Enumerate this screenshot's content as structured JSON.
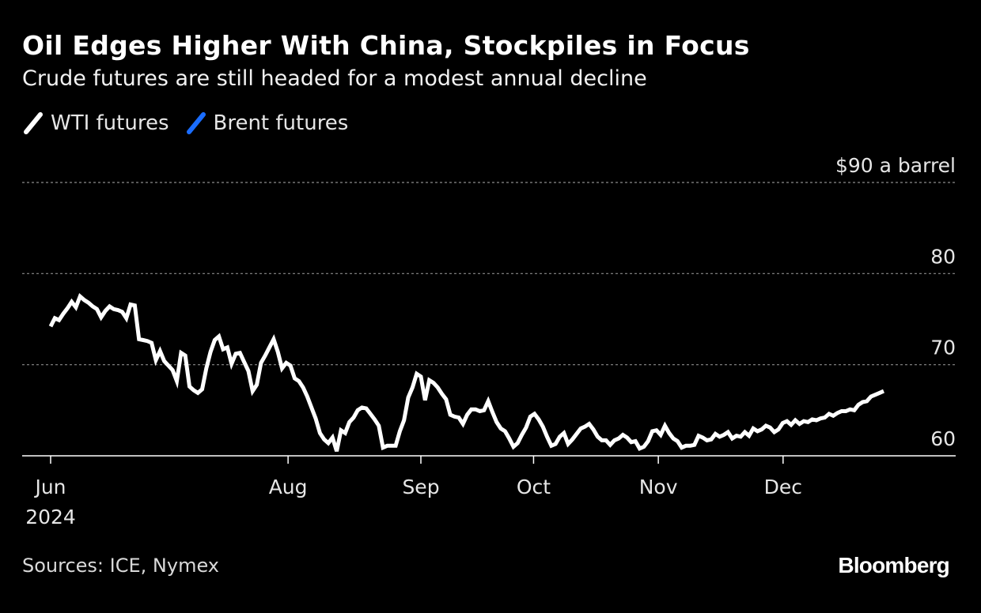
{
  "title": "Oil Edges Higher With China, Stockpiles in Focus",
  "subtitle": "Crude futures are still headed for a modest annual decline",
  "source": "Sources: ICE, Nymex",
  "logo": "Bloomberg",
  "colors": {
    "background": "#000000",
    "wti": "#ffffff",
    "brent": "#1a6dff",
    "grid": "#8c8c8c"
  },
  "chart_data": {
    "type": "line",
    "x_unit": "trading day index (0 = June 3, 2024)",
    "y_unit_label": "$90 a barrel",
    "ylim": [
      60,
      90
    ],
    "y_ticks": [
      {
        "value": 90,
        "label": "$90 a barrel"
      },
      {
        "value": 80,
        "label": "80"
      },
      {
        "value": 70,
        "label": "70"
      },
      {
        "value": 60,
        "label": "60"
      }
    ],
    "x_ticks": [
      {
        "date": "2024-06-03",
        "label": "Jun",
        "sublabel": "2024"
      },
      {
        "date": "2024-08-01",
        "label": "Aug",
        "sublabel": ""
      },
      {
        "date": "2024-09-03",
        "label": "Sep",
        "sublabel": ""
      },
      {
        "date": "2024-10-01",
        "label": "Oct",
        "sublabel": ""
      },
      {
        "date": "2024-11-01",
        "label": "Nov",
        "sublabel": ""
      },
      {
        "date": "2024-12-02",
        "label": "Dec",
        "sublabel": ""
      }
    ],
    "x_start": "2024-06-03",
    "x_end": "2024-12-27",
    "legend_position": "top-left",
    "grid": true,
    "series": [
      {
        "name": "WTI futures",
        "color": "#ffffff",
        "values": [
          74.2,
          75.1,
          74.9,
          75.6,
          76.2,
          76.9,
          76.3,
          77.5,
          77.1,
          76.8,
          76.4,
          76.1,
          75.2,
          75.9,
          76.4,
          76.1,
          76.0,
          75.8,
          75.1,
          76.6,
          76.5,
          72.8,
          72.7,
          72.6,
          72.4,
          70.5,
          71.5,
          70.4,
          69.9,
          69.4,
          68.2,
          71.3,
          71.0,
          67.6,
          67.2,
          66.9,
          67.3,
          69.6,
          71.4,
          72.7,
          73.1,
          71.7,
          71.9,
          70.1,
          71.2,
          71.3,
          70.3,
          69.3,
          67.1,
          67.8,
          70.2,
          71.0,
          71.9,
          72.8,
          71.4,
          69.6,
          70.2,
          69.9,
          68.5,
          68.2,
          67.5,
          66.5,
          65.3,
          64.1,
          62.5,
          61.8,
          61.4,
          62.0,
          60.5,
          62.8,
          62.5,
          63.7,
          64.2,
          65.0,
          65.3,
          65.2,
          64.6,
          64.0,
          63.3,
          60.9,
          61.1,
          61.1,
          61.1,
          62.7,
          63.9,
          66.4,
          67.5,
          69.0,
          68.7,
          66.1,
          68.3,
          68.0,
          67.5,
          66.8,
          66.2,
          64.5,
          64.3,
          64.2,
          63.5,
          64.5,
          65.1,
          65.1,
          64.9,
          65.0,
          66.0,
          64.8,
          63.7,
          63.0,
          62.7,
          61.9,
          61.0,
          61.4,
          62.3,
          63.1,
          64.3,
          64.6,
          64.0,
          63.2,
          62.1,
          61.1,
          61.3,
          62.1,
          62.5,
          61.3,
          61.8,
          62.4,
          63.0,
          63.2,
          63.5,
          62.9,
          62.1,
          61.7,
          61.7,
          61.2,
          61.7,
          61.9,
          62.3,
          62.0,
          61.5,
          61.6,
          60.8,
          61.0,
          61.6,
          62.7,
          62.8,
          62.3,
          63.3,
          62.5,
          61.9,
          61.6,
          60.9,
          61.1,
          61.1,
          61.2,
          62.2,
          62.0,
          61.7,
          61.8,
          62.4,
          62.1,
          62.3,
          62.6,
          61.9,
          62.2,
          62.1,
          62.6,
          62.2,
          63.0,
          62.7,
          62.9,
          63.3,
          63.1,
          62.6,
          62.9,
          63.6,
          63.8,
          63.4,
          63.9,
          63.5,
          63.8,
          63.7,
          64.0,
          63.9,
          64.1,
          64.2,
          64.6,
          64.4,
          64.7,
          64.9,
          64.9,
          65.1,
          65.0,
          65.6,
          65.9,
          66.0,
          66.5,
          66.7,
          66.9,
          67.1
        ]
      },
      {
        "name": "Brent futures",
        "color": "#1a6dff",
        "values": []
      }
    ]
  }
}
